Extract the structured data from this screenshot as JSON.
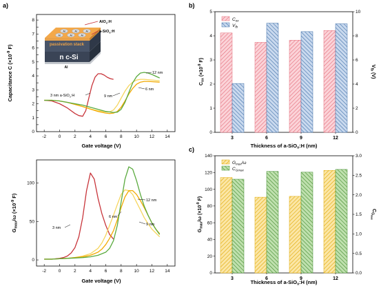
{
  "panels": {
    "a": {
      "label": "a)",
      "top": {
        "ylabel_main": "Capacitance C (×10",
        "ylabel_sup": "-9",
        "ylabel_end": " F)",
        "xlabel": "Gate voltage (V)",
        "xticks": [
          -2,
          0,
          2,
          4,
          6,
          8,
          10,
          12,
          14
        ],
        "yticks": [
          0,
          0.5,
          1,
          1.5,
          2,
          2.5,
          3,
          3.5,
          4,
          4.5,
          5,
          5.5,
          6,
          6.5,
          7,
          7.5,
          8
        ],
        "xlim": [
          -3,
          15
        ],
        "ylim": [
          0,
          8.4
        ],
        "annotations": [
          {
            "text": "3 nm a-SiO",
            "sub": "x",
            "tail": ":H",
            "series": 0
          },
          {
            "text": "9 nm",
            "series": 1
          },
          {
            "text": "6 nm",
            "series": 2
          },
          {
            "text": "12 nm",
            "series": 3
          }
        ],
        "inset": {
          "top_layer": "AlO",
          "top_layer_sub": "x",
          "top_layer_tail": ":H",
          "mid_layer": "a-SiO",
          "mid_layer_sub": "x",
          "mid_layer_tail": ":H",
          "stack_label": "passivation stack",
          "substrate": "n c-Si",
          "contact": "Al",
          "dot": "Al"
        }
      },
      "bottom": {
        "ylabel_a": "G",
        "ylabel_sub": "max",
        "ylabel_b": "/ω (×10",
        "ylabel_sup": "-9",
        "ylabel_end": " F)",
        "xlabel": "Gate voltage (V)",
        "xticks": [
          -2,
          0,
          2,
          4,
          6,
          8,
          10,
          12,
          14
        ],
        "yticks": [
          0,
          50,
          100
        ],
        "xlim": [
          -3,
          15
        ],
        "ylim": [
          -8,
          130
        ],
        "annotations": [
          {
            "text": "3 nm",
            "series": 0
          },
          {
            "text": "6 nm",
            "series": 2
          },
          {
            "text": "9 nm",
            "series": 1
          },
          {
            "text": "12 nm",
            "series": 3
          }
        ]
      }
    },
    "b": {
      "label": "b)",
      "xlabel_a": "Thickness of a-SiO",
      "xlabel_sub": "x",
      "xlabel_b": ":H (nm)",
      "ylabel_left_a": "C",
      "ylabel_left_sub": "ox",
      "ylabel_left_b": " (×10",
      "ylabel_left_sup": "-9",
      "ylabel_left_end": " F)",
      "ylabel_right_a": "V",
      "ylabel_right_sub": "fb",
      "ylabel_right_b": " (V)",
      "legend": [
        {
          "a": "C",
          "sub": "ox"
        },
        {
          "a": "V",
          "sub": "fb"
        }
      ],
      "yticks_left": [
        0,
        1,
        2,
        3,
        4,
        5
      ],
      "yticks_right": [
        0,
        2,
        4,
        6,
        8,
        10
      ]
    },
    "c": {
      "label": "c)",
      "xlabel_a": "Thickness of a-SiO",
      "xlabel_sub": "x",
      "xlabel_b": ":H (nm)",
      "ylabel_left_a": "G",
      "ylabel_left_sub": "max",
      "ylabel_left_b": "/ω (×10",
      "ylabel_left_sup": "-9",
      "ylabel_left_end": " F)",
      "ylabel_right_a": "C",
      "ylabel_right_sub": "G",
      "ylabel_right_subsub": "max",
      "legend": [
        {
          "a": "G",
          "sub": "max",
          "b": "/ω"
        },
        {
          "a": "C",
          "sub": "Gmax"
        }
      ],
      "yticks_left": [
        0,
        20,
        40,
        60,
        80,
        100,
        120,
        140
      ],
      "yticks_right": [
        0.0,
        0.5,
        1.0,
        1.5,
        2.0,
        2.5,
        3.0
      ]
    }
  },
  "colors": {
    "t3": "#c8343a",
    "t6": "#f2a900",
    "t9": "#f6d55c",
    "t12": "#5aaa3e",
    "cox": "#f4a6ae",
    "vfb": "#6e95c4",
    "gmax": "#f5c842",
    "cg": "#6aaa4c"
  },
  "chart_data": [
    {
      "type": "line",
      "title": "",
      "xlabel": "Gate voltage (V)",
      "ylabel": "Capacitance C (×10-9 F)",
      "xlim": [
        -3,
        15
      ],
      "ylim": [
        0,
        8.4
      ],
      "series": [
        {
          "name": "3 nm a-SiOx:H",
          "x": [
            -2,
            -1,
            0,
            1,
            2,
            2.5,
            3,
            3.4,
            3.8,
            4.2,
            4.6,
            5.0,
            5.4,
            5.8,
            6.2,
            6.6,
            7.0
          ],
          "y": [
            2.25,
            2.2,
            2.0,
            1.7,
            1.3,
            1.15,
            1.1,
            1.5,
            2.4,
            3.3,
            3.9,
            4.15,
            4.15,
            4.05,
            3.9,
            3.8,
            3.75
          ]
        },
        {
          "name": "9 nm",
          "x": [
            -2,
            -1,
            0,
            1,
            2,
            3,
            4,
            5,
            6,
            6.5,
            7,
            7.5,
            8,
            8.5,
            9,
            9.5,
            10,
            10.5,
            11,
            12,
            13
          ],
          "y": [
            2.25,
            2.25,
            2.2,
            2.1,
            1.95,
            1.8,
            1.62,
            1.5,
            1.42,
            1.42,
            1.55,
            1.9,
            2.4,
            2.9,
            3.3,
            3.55,
            3.7,
            3.75,
            3.75,
            3.7,
            3.65
          ]
        },
        {
          "name": "6 nm",
          "x": [
            -2,
            -1,
            0,
            1,
            2,
            3,
            4,
            5,
            6,
            6.5,
            7,
            7.5,
            8,
            8.5,
            9,
            9.5,
            10,
            10.5,
            11,
            11.5,
            12,
            13
          ],
          "y": [
            2.25,
            2.25,
            2.2,
            2.1,
            1.95,
            1.8,
            1.62,
            1.45,
            1.33,
            1.3,
            1.33,
            1.45,
            1.75,
            2.2,
            2.7,
            3.1,
            3.4,
            3.55,
            3.6,
            3.6,
            3.58,
            3.55
          ]
        },
        {
          "name": "12 nm",
          "x": [
            -2,
            -1,
            0,
            1,
            2,
            3,
            4,
            5,
            6,
            7,
            7.5,
            8,
            8.5,
            9,
            9.5,
            10,
            10.5,
            11,
            11.5,
            12,
            13
          ],
          "y": [
            2.25,
            2.25,
            2.2,
            2.1,
            2.0,
            1.9,
            1.75,
            1.6,
            1.45,
            1.38,
            1.4,
            1.6,
            2.1,
            2.8,
            3.5,
            3.95,
            4.2,
            4.25,
            4.2,
            4.1,
            3.85
          ]
        }
      ]
    },
    {
      "type": "line",
      "title": "",
      "xlabel": "Gate voltage (V)",
      "ylabel": "Gmax/ω (×10-9 F)",
      "xlim": [
        -3,
        15
      ],
      "ylim": [
        -8,
        130
      ],
      "series": [
        {
          "name": "3 nm",
          "x": [
            -2,
            -1,
            0,
            0.5,
            1,
            1.5,
            2,
            2.5,
            3,
            3.5,
            4,
            4.5,
            5,
            5.5,
            6,
            6.5,
            7
          ],
          "y": [
            1,
            1,
            2,
            3,
            5,
            9,
            16,
            30,
            55,
            90,
            113,
            105,
            80,
            60,
            45,
            33,
            27
          ]
        },
        {
          "name": "9 nm",
          "x": [
            -2,
            -1,
            0,
            1,
            2,
            3,
            4,
            5,
            5.5,
            6,
            6.5,
            7,
            7.5,
            8,
            8.5,
            9,
            9.5,
            10,
            10.5,
            11,
            11.5,
            12,
            12.5,
            13
          ],
          "y": [
            1,
            1,
            1.5,
            2,
            3,
            5,
            8,
            15,
            22,
            32,
            45,
            58,
            72,
            85,
            91,
            90,
            85,
            75,
            65,
            55,
            47,
            40,
            35,
            30
          ]
        },
        {
          "name": "6 nm",
          "x": [
            -2,
            -1,
            0,
            1,
            2,
            3,
            4,
            5,
            5.5,
            6,
            6.5,
            7,
            7.5,
            8,
            8.5,
            9,
            9.5,
            10,
            10.5,
            11,
            11.5,
            12,
            12.5,
            13
          ],
          "y": [
            1,
            1,
            1.5,
            2,
            3,
            4,
            6,
            10,
            14,
            20,
            28,
            38,
            52,
            68,
            82,
            90,
            90,
            85,
            77,
            68,
            58,
            48,
            40,
            34
          ]
        },
        {
          "name": "12 nm",
          "x": [
            -2,
            -1,
            0,
            1,
            2,
            3,
            4,
            5,
            6,
            6.5,
            7,
            7.5,
            8,
            8.5,
            9,
            9.5,
            10,
            10.5,
            11,
            11.5,
            12,
            12.5,
            13
          ],
          "y": [
            1,
            1,
            1.5,
            2,
            2.5,
            3,
            4,
            6,
            10,
            15,
            25,
            45,
            75,
            105,
            121,
            118,
            103,
            85,
            70,
            58,
            48,
            40,
            33
          ]
        }
      ]
    },
    {
      "type": "bar",
      "title": "",
      "xlabel": "Thickness of a-SiOx:H (nm)",
      "categories": [
        "3",
        "6",
        "9",
        "12"
      ],
      "ylim_left": [
        0,
        5
      ],
      "ylim_right": [
        0,
        10
      ],
      "series": [
        {
          "name": "Cox",
          "axis": "left",
          "values": [
            4.12,
            3.73,
            3.82,
            4.22
          ]
        },
        {
          "name": "Vfb",
          "axis": "right",
          "values": [
            4.05,
            9.05,
            8.35,
            9.0
          ]
        }
      ]
    },
    {
      "type": "bar",
      "title": "",
      "xlabel": "Thickness of a-SiOx:H (nm)",
      "categories": [
        "3",
        "6",
        "9",
        "12"
      ],
      "ylim_left": [
        0,
        140
      ],
      "ylim_right": [
        0,
        3.0
      ],
      "series": [
        {
          "name": "Gmax/ω",
          "axis": "left",
          "values": [
            114,
            90.5,
            91.5,
            122.5
          ]
        },
        {
          "name": "CGmax",
          "axis": "right",
          "values": [
            2.4,
            2.6,
            2.58,
            2.65
          ]
        }
      ]
    }
  ]
}
